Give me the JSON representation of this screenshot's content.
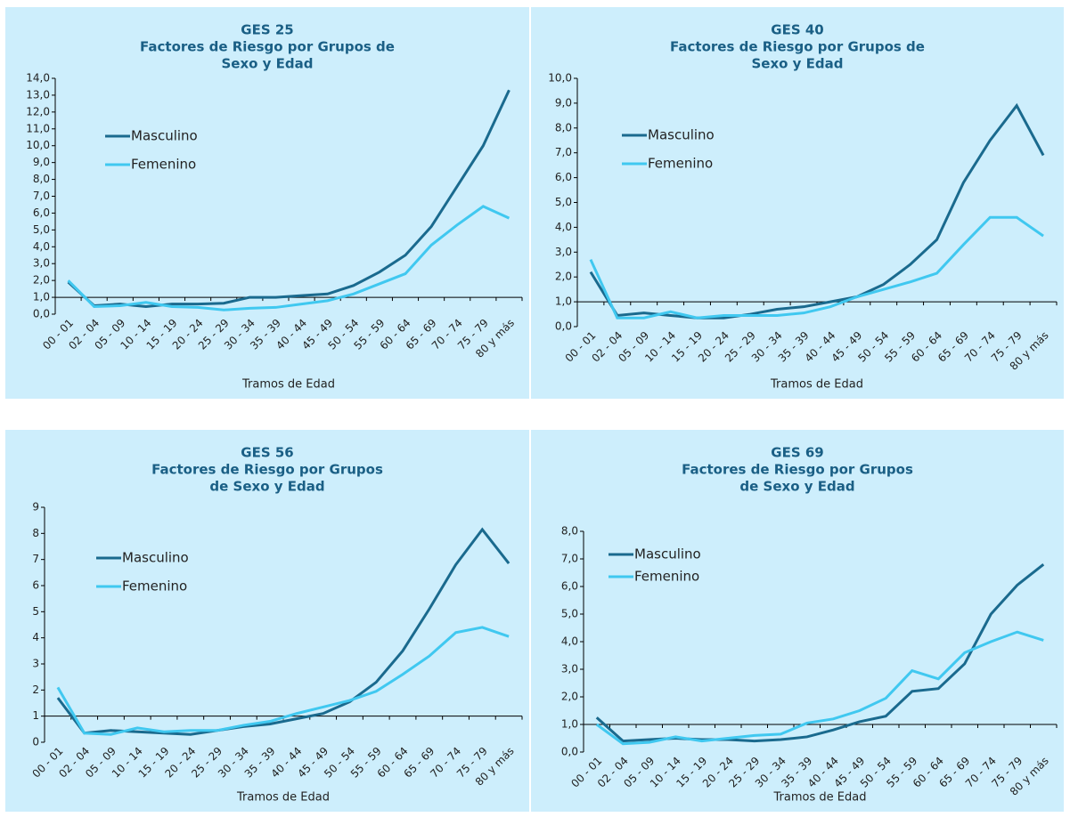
{
  "chart_data": [
    {
      "type": "line",
      "title": [
        "GES 25",
        "Factores de Riesgo por Grupos de",
        "Sexo y Edad"
      ],
      "x_label": "Tramos de Edad",
      "categories": [
        "00 - 01",
        "02 - 04",
        "05 - 09",
        "10 - 14",
        "15 - 19",
        "20 - 24",
        "25 - 29",
        "30 - 34",
        "35 - 39",
        "40 - 44",
        "45 - 49",
        "50 - 54",
        "55 - 59",
        "60 - 64",
        "65 - 69",
        "70 - 74",
        "75 - 79",
        "80 y más"
      ],
      "series": [
        {
          "name": "Masculino",
          "color": "#1a6a8e",
          "values": [
            1.9,
            0.5,
            0.6,
            0.45,
            0.6,
            0.6,
            0.65,
            1.0,
            1.0,
            1.1,
            1.2,
            1.7,
            2.5,
            3.5,
            5.2,
            7.6,
            10.0,
            13.3
          ]
        },
        {
          "name": "Femenino",
          "color": "#40c8f0",
          "values": [
            2.0,
            0.45,
            0.5,
            0.7,
            0.45,
            0.4,
            0.25,
            0.35,
            0.4,
            0.6,
            0.8,
            1.2,
            1.8,
            2.4,
            4.1,
            5.3,
            6.4,
            5.7
          ]
        }
      ],
      "ylim": [
        0,
        14
      ],
      "x_axis_crosses_at": 1,
      "yticks": [
        {
          "value": 0,
          "label": "0,0"
        },
        {
          "value": 1,
          "label": "1,0"
        },
        {
          "value": 2,
          "label": "2,0"
        },
        {
          "value": 3,
          "label": "3,0"
        },
        {
          "value": 4,
          "label": "4,0"
        },
        {
          "value": 5,
          "label": "5,0"
        },
        {
          "value": 6,
          "label": "6,0"
        },
        {
          "value": 7,
          "label": "7,0"
        },
        {
          "value": 8,
          "label": "8,0"
        },
        {
          "value": 9,
          "label": "9,0"
        },
        {
          "value": 10,
          "label": "10,0"
        },
        {
          "value": 11,
          "label": "11,0"
        },
        {
          "value": 12,
          "label": "12,0"
        },
        {
          "value": 13,
          "label": "13,0"
        },
        {
          "value": 14,
          "label": "14,0"
        }
      ]
    },
    {
      "type": "line",
      "title": [
        "GES 40",
        "Factores de Riesgo por Grupos de",
        "Sexo y Edad"
      ],
      "x_label": "Tramos de Edad",
      "categories": [
        "00 - 01",
        "02 - 04",
        "05 - 09",
        "10 - 14",
        "15 - 19",
        "20 - 24",
        "25 - 29",
        "30 - 34",
        "35 - 39",
        "40 - 44",
        "45 - 49",
        "50 - 54",
        "55 - 59",
        "60 - 64",
        "65 - 69",
        "70 - 74",
        "75 - 79",
        "80 y más"
      ],
      "series": [
        {
          "name": "Masculino",
          "color": "#1a6a8e",
          "values": [
            2.2,
            0.45,
            0.55,
            0.45,
            0.35,
            0.35,
            0.5,
            0.7,
            0.8,
            1.0,
            1.2,
            1.7,
            2.5,
            3.5,
            5.8,
            7.5,
            8.9,
            6.9
          ]
        },
        {
          "name": "Femenino",
          "color": "#40c8f0",
          "values": [
            2.7,
            0.35,
            0.35,
            0.6,
            0.35,
            0.45,
            0.45,
            0.45,
            0.55,
            0.8,
            1.2,
            1.5,
            1.8,
            2.15,
            3.3,
            4.4,
            4.4,
            3.65
          ]
        }
      ],
      "ylim": [
        0,
        10
      ],
      "x_axis_crosses_at": 1,
      "yticks": [
        {
          "value": 0,
          "label": "0,0"
        },
        {
          "value": 1,
          "label": "1,0"
        },
        {
          "value": 2,
          "label": "2,0"
        },
        {
          "value": 3,
          "label": "3,0"
        },
        {
          "value": 4,
          "label": "4,0"
        },
        {
          "value": 5,
          "label": "5,0"
        },
        {
          "value": 6,
          "label": "6,0"
        },
        {
          "value": 7,
          "label": "7,0"
        },
        {
          "value": 8,
          "label": "8,0"
        },
        {
          "value": 9,
          "label": "9,0"
        },
        {
          "value": 10,
          "label": "10,0"
        }
      ]
    },
    {
      "type": "line",
      "title": [
        "GES 56",
        "Factores de Riesgo por Grupos",
        "de Sexo y Edad"
      ],
      "x_label": "Tramos de Edad",
      "categories": [
        "00 - 01",
        "02 - 04",
        "05 - 09",
        "10 - 14",
        "15 - 19",
        "20 - 24",
        "25 - 29",
        "30 - 34",
        "35 - 39",
        "40 - 44",
        "45 - 49",
        "50 - 54",
        "55 - 59",
        "60 - 64",
        "65 - 69",
        "70 - 74",
        "75 - 79",
        "80 y más"
      ],
      "series": [
        {
          "name": "Masculino",
          "color": "#1a6a8e",
          "values": [
            1.7,
            0.35,
            0.45,
            0.4,
            0.35,
            0.3,
            0.45,
            0.6,
            0.7,
            0.9,
            1.1,
            1.55,
            2.3,
            3.5,
            5.1,
            6.8,
            8.15,
            6.85
          ]
        },
        {
          "name": "Femenino",
          "color": "#40c8f0",
          "values": [
            2.1,
            0.35,
            0.3,
            0.55,
            0.4,
            0.45,
            0.45,
            0.65,
            0.8,
            1.1,
            1.35,
            1.6,
            1.95,
            2.6,
            3.3,
            4.2,
            4.4,
            4.05
          ]
        }
      ],
      "ylim": [
        0,
        9
      ],
      "x_axis_crosses_at": 1,
      "yticks": [
        0,
        1,
        2,
        3,
        4,
        5,
        6,
        7,
        8,
        9
      ]
    },
    {
      "type": "line",
      "title": [
        "GES 69",
        "Factores de Riesgo por Grupos",
        "de Sexo y Edad"
      ],
      "x_label": "Tramos de Edad",
      "categories": [
        "00 - 01",
        "02 - 04",
        "05 - 09",
        "10 - 14",
        "15 - 19",
        "20 - 24",
        "25 - 29",
        "30 - 34",
        "35 - 39",
        "40 - 44",
        "45 - 49",
        "50 - 54",
        "55 - 59",
        "60 - 64",
        "65 - 69",
        "70 - 74",
        "75 - 79",
        "80 y más"
      ],
      "series": [
        {
          "name": "Masculino",
          "color": "#1a6a8e",
          "values": [
            1.25,
            0.4,
            0.45,
            0.5,
            0.45,
            0.45,
            0.4,
            0.45,
            0.55,
            0.8,
            1.1,
            1.3,
            2.2,
            2.3,
            3.2,
            5.0,
            6.05,
            6.8
          ]
        },
        {
          "name": "Femenino",
          "color": "#40c8f0",
          "values": [
            1.0,
            0.3,
            0.35,
            0.55,
            0.4,
            0.5,
            0.6,
            0.65,
            1.05,
            1.2,
            1.5,
            1.95,
            2.95,
            2.65,
            3.6,
            4.0,
            4.35,
            4.05
          ]
        }
      ],
      "ylim": [
        0,
        8
      ],
      "x_axis_crosses_at": 1,
      "yticks": [
        {
          "value": 0,
          "label": "0,0"
        },
        {
          "value": 1,
          "label": "1,0"
        },
        {
          "value": 2,
          "label": "2,0"
        },
        {
          "value": 3,
          "label": "3,0"
        },
        {
          "value": 4,
          "label": "4,0"
        },
        {
          "value": 5,
          "label": "5,0"
        },
        {
          "value": 6,
          "label": "6,0"
        },
        {
          "value": 7,
          "label": "7,0"
        },
        {
          "value": 8,
          "label": "8,0"
        }
      ]
    }
  ]
}
